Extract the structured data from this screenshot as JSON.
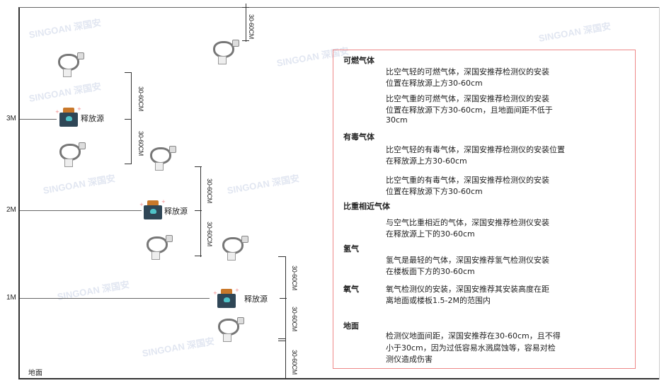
{
  "watermark": "SINGOAN 深国安",
  "levels": [
    "3M",
    "2M",
    "1M"
  ],
  "ground_label": "地面",
  "source_label": "释放源",
  "dimension_label": "30-60CM",
  "info": {
    "flammable": {
      "title": "可燃气体",
      "lighter": [
        "比空气轻的可燃气体，深国安推荐检测仪的安装",
        "位置在释放源上方30-60cm"
      ],
      "heavier": [
        "比空气重的可燃气体，深国安推荐检测仪的安装",
        "位置在释放源下方30-60cm，且地面间距不低于",
        "30cm"
      ]
    },
    "toxic": {
      "title": "有毒气体",
      "lighter": [
        "比空气轻的有毒气体，深国安推荐检测仪的安装位置",
        "在释放源上方30-60cm"
      ],
      "heavier": [
        "比空气重的有毒气体，深国安推荐检测仪的安装",
        "位置在释放源下方30-60cm"
      ]
    },
    "similar": {
      "title": "比重相近气体",
      "text": [
        "与空气比重相近的气体，深国安推荐检测仪安装",
        "在释放源上下的30-60cm"
      ]
    },
    "hydrogen": {
      "title": "氢气",
      "text": [
        "氢气是最轻的气体，深国安推荐氢气检测仪安装",
        "在楼板面下方的30-60cm"
      ]
    },
    "oxygen": {
      "title": "氧气",
      "text": [
        "氧气检测仪的安装，深国安推荐其安装高度在距",
        "离地面或楼板1.5-2M的范围内"
      ]
    },
    "ground": {
      "title": "地面",
      "text": [
        "检测仪地面间距，深国安推荐在30-60cm，且不得",
        "小于30cm，因为过低容易水溅腐蚀等，容易对检",
        "测仪造成伤害"
      ]
    }
  }
}
